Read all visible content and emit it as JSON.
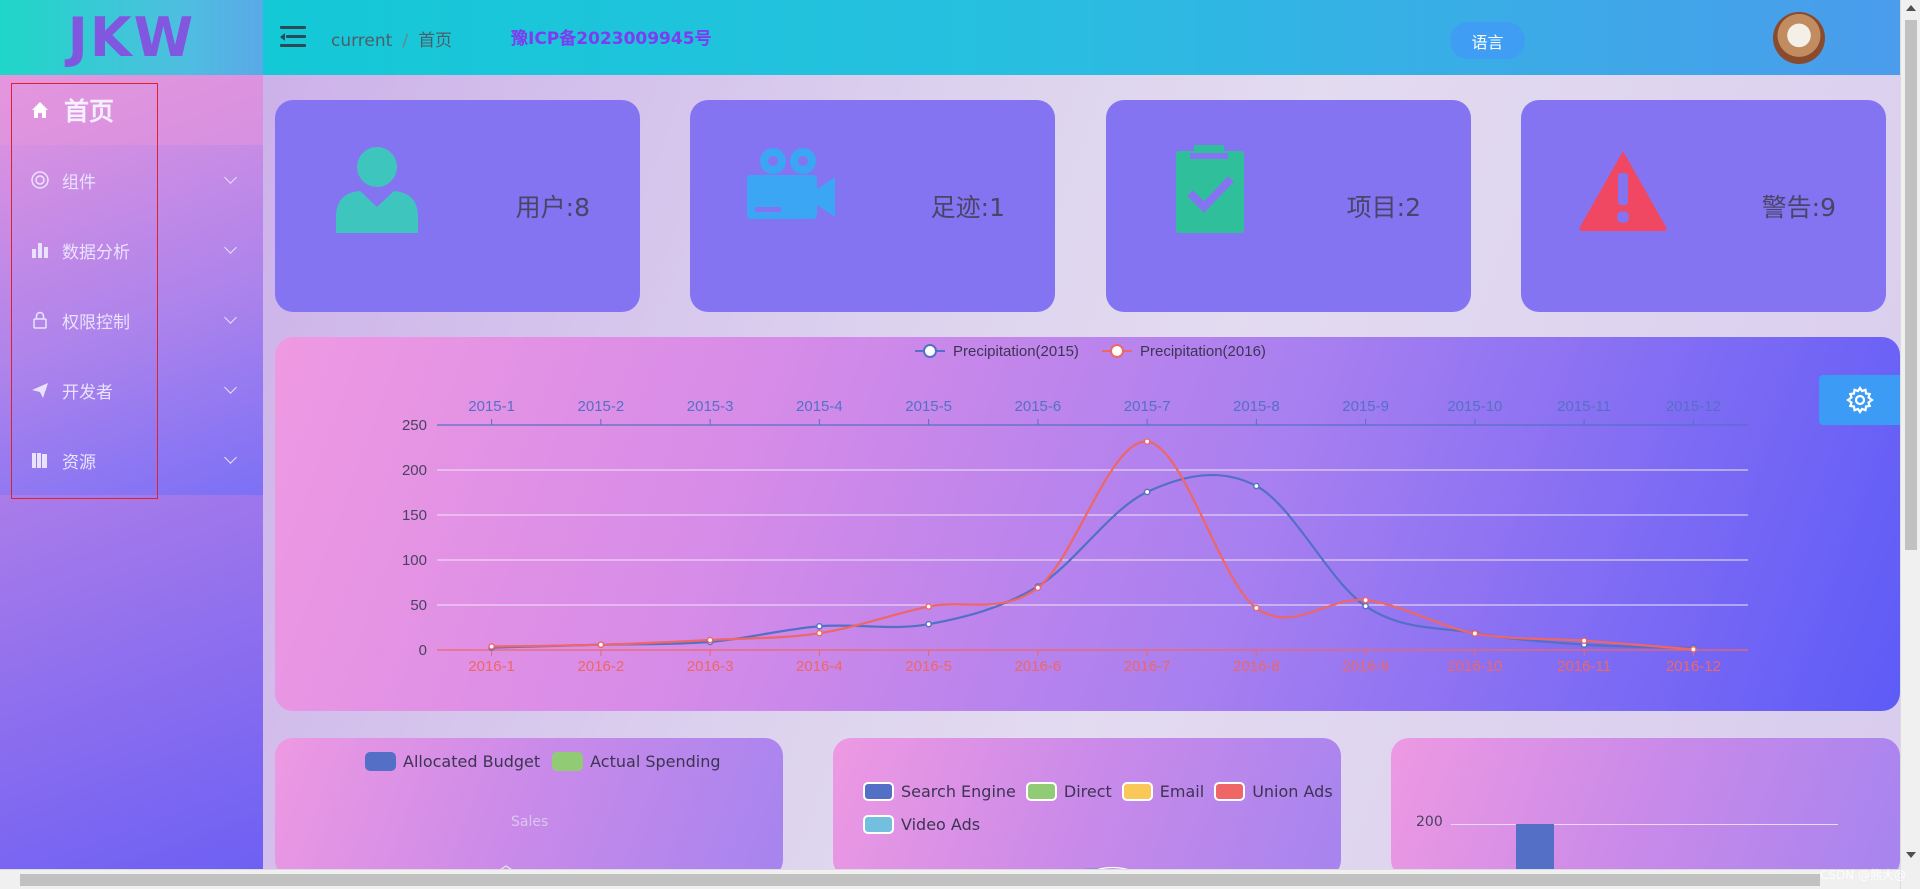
{
  "sidebar": {
    "logo": "JKW",
    "home_label": "首页",
    "items": [
      {
        "label": "组件",
        "icon": "component-icon"
      },
      {
        "label": "数据分析",
        "icon": "bar-chart-icon"
      },
      {
        "label": "权限控制",
        "icon": "lock-icon"
      },
      {
        "label": "开发者",
        "icon": "paper-plane-icon"
      },
      {
        "label": "资源",
        "icon": "book-icon"
      }
    ]
  },
  "header": {
    "breadcrumb": [
      "current",
      "首页"
    ],
    "icp": "豫ICP备2023009945号",
    "lang_label": "语言"
  },
  "stats": [
    {
      "label": "用户:8",
      "icon": "user-icon",
      "color": "#3ec6be"
    },
    {
      "label": "足迹:1",
      "icon": "video-camera-icon",
      "color": "#3aa6f4"
    },
    {
      "label": "项目:2",
      "icon": "clipboard-check-icon",
      "color": "#2fbf9a"
    },
    {
      "label": "警告:9",
      "icon": "warning-icon",
      "color": "#f04862"
    }
  ],
  "chart_data": [
    {
      "type": "line",
      "legend": [
        "Precipitation(2015)",
        "Precipitation(2016)"
      ],
      "x_top": [
        "2015-1",
        "2015-2",
        "2015-3",
        "2015-4",
        "2015-5",
        "2015-6",
        "2015-7",
        "2015-8",
        "2015-9",
        "2015-10",
        "2015-11",
        "2015-12"
      ],
      "x_bottom": [
        "2016-1",
        "2016-2",
        "2016-3",
        "2016-4",
        "2016-5",
        "2016-6",
        "2016-7",
        "2016-8",
        "2016-9",
        "2016-10",
        "2016-11",
        "2016-12"
      ],
      "ylim": [
        0,
        250
      ],
      "yticks": [
        0,
        50,
        100,
        150,
        200,
        250
      ],
      "series": [
        {
          "name": "Precipitation(2015)",
          "color": "#5470c6",
          "values": [
            2.6,
            5.9,
            9.0,
            26.4,
            28.7,
            70.7,
            175.6,
            182.2,
            48.7,
            18.8,
            6.0,
            2.3
          ]
        },
        {
          "name": "Precipitation(2016)",
          "color": "#ee6666",
          "values": [
            3.9,
            5.9,
            11.1,
            18.7,
            48.3,
            69.2,
            231.6,
            46.6,
            55.4,
            18.4,
            10.3,
            0.7
          ]
        }
      ]
    },
    {
      "type": "radar",
      "legend": [
        "Allocated Budget",
        "Actual Spending"
      ],
      "colors": [
        "#5470c6",
        "#91cc75"
      ],
      "indicator_visible": "Sales"
    },
    {
      "type": "pie",
      "legend": [
        "Search Engine",
        "Direct",
        "Email",
        "Union Ads",
        "Video Ads"
      ],
      "colors": [
        "#5470c6",
        "#91cc75",
        "#fac858",
        "#ee6666",
        "#73c0de"
      ]
    },
    {
      "type": "bar",
      "ytick_visible": 200,
      "color": "#5470c6"
    }
  ],
  "footer": {
    "watermark": "CSDN @熊大@"
  }
}
